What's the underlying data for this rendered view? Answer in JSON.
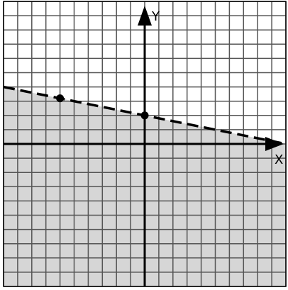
{
  "chart_data": {
    "type": "line",
    "title": "",
    "xlabel": "X",
    "ylabel": "Y",
    "xlim": [
      -10,
      10
    ],
    "ylim": [
      -10,
      10
    ],
    "grid": true,
    "grid_step": 1,
    "series": [
      {
        "line_style": "dashed",
        "slope": -0.2,
        "intercept": 2,
        "x": [
          -10,
          10
        ],
        "y": [
          4,
          0
        ],
        "marked_points": [
          {
            "x": -6,
            "y": 3.2
          },
          {
            "x": 0,
            "y": 2
          }
        ],
        "shaded_region": "below"
      }
    ],
    "colors": {
      "shade": "#d6d6d6",
      "grid": "#555555",
      "axis": "#000000",
      "background": "#ffffff"
    }
  }
}
